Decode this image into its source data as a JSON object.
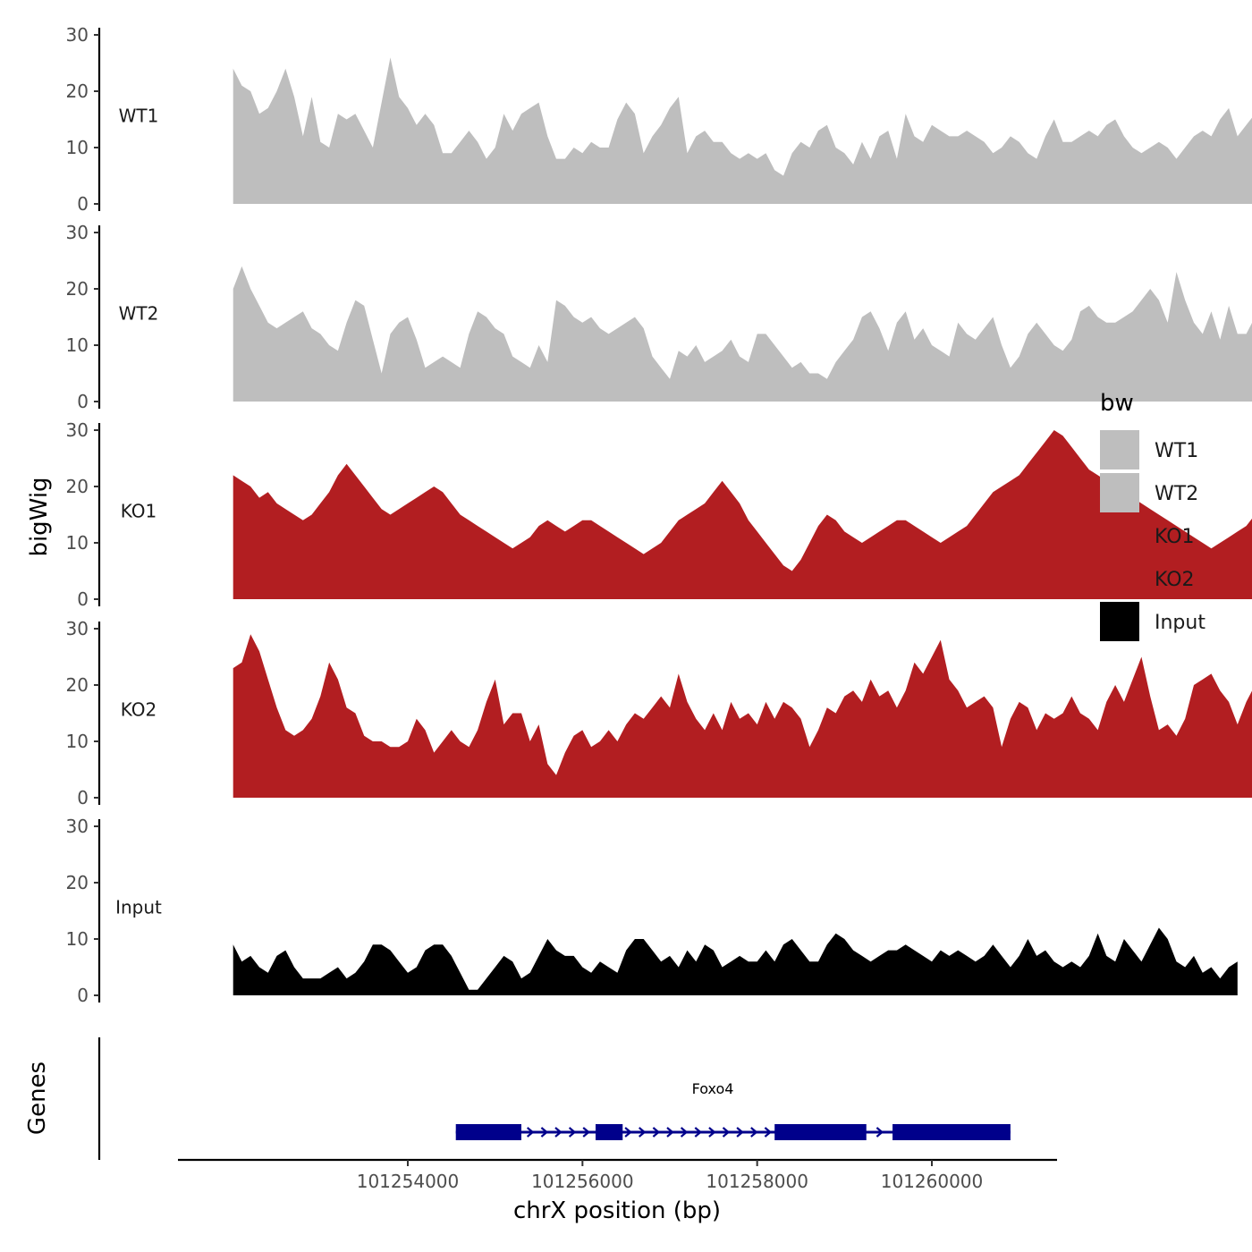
{
  "chart_data": {
    "type": "area",
    "title": "",
    "ylabel": "bigWig",
    "xlabel": "chrX position (bp)",
    "ylim": [
      0,
      30
    ],
    "y_ticks": [
      0,
      10,
      20,
      30
    ],
    "xlim": [
      101252000,
      101260900
    ],
    "x_ticks": [
      101254000,
      101256000,
      101258000,
      101260000
    ],
    "x_tick_labels": [
      "101254000",
      "101256000",
      "101258000",
      "101260000"
    ],
    "x_start": 101252000,
    "x_step": 100,
    "legend": {
      "title": "bw",
      "placement": "right",
      "entries": [
        {
          "label": "WT1",
          "color": "#bebebe"
        },
        {
          "label": "WT2",
          "color": "#bebebe"
        },
        {
          "label": "KO1",
          "color": "#b21e21"
        },
        {
          "label": "KO2",
          "color": "#b21e21"
        },
        {
          "label": "Input",
          "color": "#000000"
        }
      ]
    },
    "series": [
      {
        "name": "WT1",
        "color": "#bebebe",
        "values": [
          24,
          21,
          20,
          16,
          17,
          20,
          24,
          19,
          12,
          19,
          11,
          10,
          16,
          15,
          16,
          13,
          10,
          18,
          26,
          19,
          17,
          14,
          16,
          14,
          9,
          9,
          11,
          13,
          11,
          8,
          10,
          16,
          13,
          16,
          17,
          18,
          12,
          8,
          8,
          10,
          9,
          11,
          10,
          10,
          15,
          18,
          16,
          9,
          12,
          14,
          17,
          19,
          9,
          12,
          13,
          11,
          11,
          9,
          8,
          9,
          8,
          9,
          6,
          5,
          9,
          11,
          10,
          13,
          14,
          10,
          9,
          7,
          11,
          8,
          12,
          13,
          8,
          16,
          12,
          11,
          14,
          13,
          12,
          12,
          13,
          12,
          11,
          9,
          10,
          12,
          11,
          9,
          8,
          12,
          15,
          11,
          11,
          12,
          13,
          12,
          14,
          15,
          12,
          10,
          9,
          10,
          11,
          10,
          8,
          10,
          12,
          13,
          12,
          15,
          17,
          12,
          14,
          16,
          11,
          10,
          10,
          9,
          8,
          12,
          15,
          16,
          18,
          21,
          22,
          20,
          17,
          17,
          18,
          17,
          16,
          14,
          16,
          18,
          14,
          16,
          15,
          14,
          18,
          20,
          18,
          16,
          14,
          11,
          17,
          16,
          14,
          13,
          15,
          18,
          20,
          18,
          16,
          15,
          27,
          23,
          21,
          19,
          19
        ]
      },
      {
        "name": "WT2",
        "color": "#bebebe",
        "values": [
          20,
          24,
          20,
          17,
          14,
          13,
          14,
          15,
          16,
          13,
          12,
          10,
          9,
          14,
          18,
          17,
          11,
          5,
          12,
          14,
          15,
          11,
          6,
          7,
          8,
          7,
          6,
          12,
          16,
          15,
          13,
          12,
          8,
          7,
          6,
          10,
          7,
          18,
          17,
          15,
          14,
          15,
          13,
          12,
          13,
          14,
          15,
          13,
          8,
          6,
          4,
          9,
          8,
          10,
          7,
          8,
          9,
          11,
          8,
          7,
          12,
          12,
          10,
          8,
          6,
          7,
          5,
          5,
          4,
          7,
          9,
          11,
          15,
          16,
          13,
          9,
          14,
          16,
          11,
          13,
          10,
          9,
          8,
          14,
          12,
          11,
          13,
          15,
          10,
          6,
          8,
          12,
          14,
          12,
          10,
          9,
          11,
          16,
          17,
          15,
          14,
          14,
          15,
          16,
          18,
          20,
          18,
          14,
          23,
          18,
          14,
          12,
          16,
          11,
          17,
          12,
          12,
          15,
          10,
          13,
          11,
          12,
          14,
          13,
          15,
          14,
          16
        ]
      },
      {
        "name": "KO1",
        "color": "#b21e21",
        "values": [
          22,
          21,
          20,
          18,
          19,
          17,
          16,
          15,
          14,
          15,
          17,
          19,
          22,
          24,
          22,
          20,
          18,
          16,
          15,
          16,
          17,
          18,
          19,
          20,
          19,
          17,
          15,
          14,
          13,
          12,
          11,
          10,
          9,
          10,
          11,
          13,
          14,
          13,
          12,
          13,
          14,
          14,
          13,
          12,
          11,
          10,
          9,
          8,
          9,
          10,
          12,
          14,
          15,
          16,
          17,
          19,
          21,
          19,
          17,
          14,
          12,
          10,
          8,
          6,
          5,
          7,
          10,
          13,
          15,
          14,
          12,
          11,
          10,
          11,
          12,
          13,
          14,
          14,
          13,
          12,
          11,
          10,
          11,
          12,
          13,
          15,
          17,
          19,
          20,
          21,
          22,
          24,
          26,
          28,
          30,
          29,
          27,
          25,
          23,
          22,
          21,
          20,
          19,
          18,
          17,
          16,
          15,
          14,
          13,
          12,
          11,
          10,
          9,
          10,
          11,
          12,
          13,
          15,
          17,
          19,
          20,
          18,
          16,
          14,
          13,
          12,
          11,
          12,
          14,
          16,
          18,
          20,
          22,
          24,
          26,
          28,
          27,
          25,
          23,
          21,
          20,
          19,
          18,
          17,
          16,
          17,
          19,
          21,
          23,
          25,
          27,
          28,
          26,
          24,
          22,
          20,
          18
        ]
      },
      {
        "name": "KO2",
        "color": "#b21e21",
        "values": [
          23,
          24,
          29,
          26,
          21,
          16,
          12,
          11,
          12,
          14,
          18,
          24,
          21,
          16,
          15,
          11,
          10,
          10,
          9,
          9,
          10,
          14,
          12,
          8,
          10,
          12,
          10,
          9,
          12,
          17,
          21,
          13,
          15,
          15,
          10,
          13,
          6,
          4,
          8,
          11,
          12,
          9,
          10,
          12,
          10,
          13,
          15,
          14,
          16,
          18,
          16,
          22,
          17,
          14,
          12,
          15,
          12,
          17,
          14,
          15,
          13,
          17,
          14,
          17,
          16,
          14,
          9,
          12,
          16,
          15,
          18,
          19,
          17,
          21,
          18,
          19,
          16,
          19,
          24,
          22,
          25,
          28,
          21,
          19,
          16,
          17,
          18,
          16,
          9,
          14,
          17,
          16,
          12,
          15,
          14,
          15,
          18,
          15,
          14,
          12,
          17,
          20,
          17,
          21,
          25,
          18,
          12,
          13,
          11,
          14,
          20,
          21,
          22,
          19,
          17,
          13,
          17,
          20,
          25,
          29,
          23,
          16,
          14,
          18,
          19,
          20,
          22
        ]
      },
      {
        "name": "Input",
        "color": "#000000",
        "values": [
          9,
          6,
          7,
          5,
          4,
          7,
          8,
          5,
          3,
          3,
          3,
          4,
          5,
          3,
          4,
          6,
          9,
          9,
          8,
          6,
          4,
          5,
          8,
          9,
          9,
          7,
          4,
          1,
          1,
          3,
          5,
          7,
          6,
          3,
          4,
          7,
          10,
          8,
          7,
          7,
          5,
          4,
          6,
          5,
          4,
          8,
          10,
          10,
          8,
          6,
          7,
          5,
          8,
          6,
          9,
          8,
          5,
          6,
          7,
          6,
          6,
          8,
          6,
          9,
          10,
          8,
          6,
          6,
          9,
          11,
          10,
          8,
          7,
          6,
          7,
          8,
          8,
          9,
          8,
          7,
          6,
          8,
          7,
          8,
          7,
          6,
          7,
          9,
          7,
          5,
          7,
          10,
          7,
          8,
          6,
          5,
          6,
          5,
          7,
          11,
          7,
          6,
          10,
          8,
          6,
          9,
          12,
          10,
          6,
          5,
          7,
          4,
          5,
          3,
          5,
          6
        ]
      }
    ],
    "genes_track": {
      "label": "Genes",
      "gene_name": "Foxo4",
      "color": "#00008b",
      "start": 101254550,
      "end": 101260900,
      "exons": [
        [
          101254550,
          101255300
        ],
        [
          101256150,
          101256460
        ],
        [
          101258200,
          101259250
        ],
        [
          101259550,
          101260900
        ]
      ]
    }
  }
}
